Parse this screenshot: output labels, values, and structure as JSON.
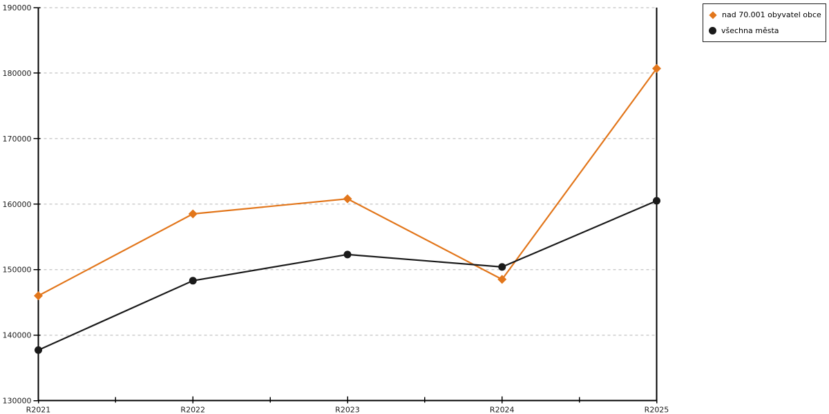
{
  "chart_data": {
    "type": "line",
    "title": "",
    "xlabel": "",
    "ylabel": "",
    "categories": [
      "R2021",
      "R2022",
      "R2023",
      "R2024",
      "R2025"
    ],
    "series": [
      {
        "name": "nad 70.001 obyvatel obce",
        "marker": "diamond",
        "color": "#e2761b",
        "values": [
          146000,
          158500,
          160800,
          148500,
          180700
        ]
      },
      {
        "name": "všechna města",
        "marker": "circle",
        "color": "#1a1a1a",
        "values": [
          137700,
          148300,
          152300,
          150400,
          160500
        ]
      }
    ],
    "ylim": [
      130000,
      190000
    ],
    "ytick_step": 10000,
    "ytick_labels": [
      "130000",
      "140000",
      "150000",
      "160000",
      "170000",
      "180000",
      "190000"
    ],
    "grid": "horizontal-dashed",
    "legend_position": "top-right"
  },
  "colors": {
    "background": "#ffffff",
    "grid": "#cccccc",
    "axis": "#000000",
    "text": "#1a1a1a",
    "legend_border": "#1a1a1a"
  }
}
